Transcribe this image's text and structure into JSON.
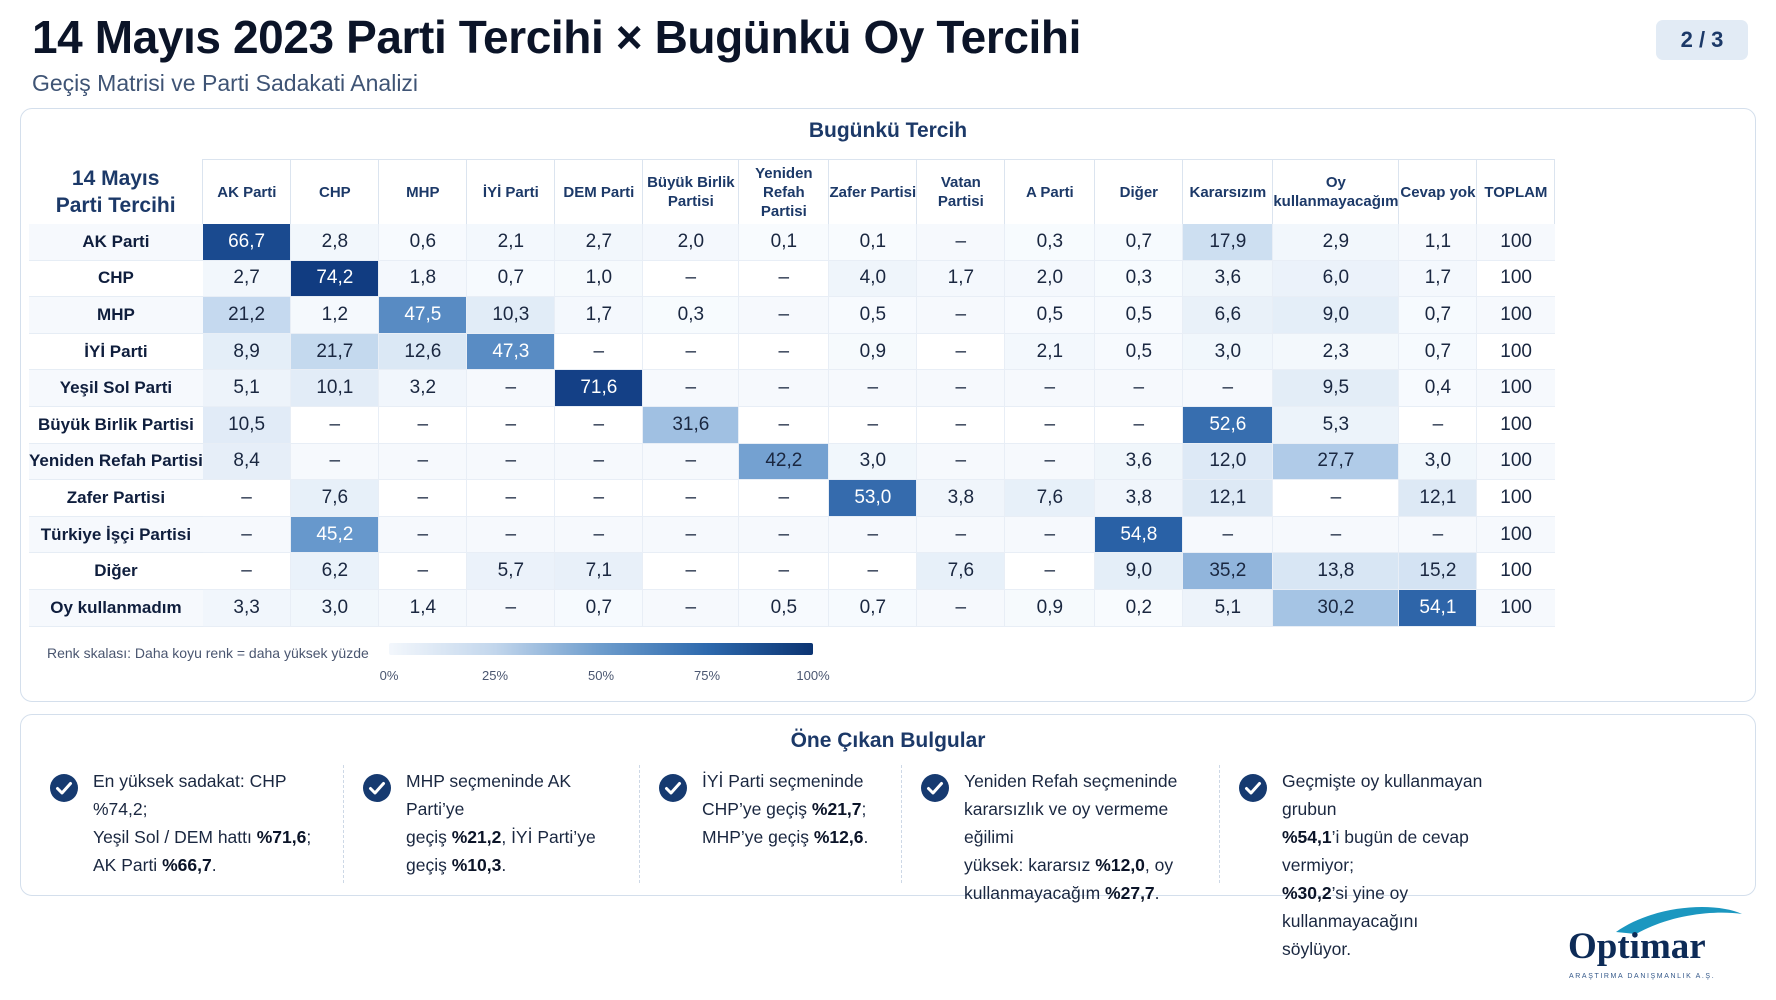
{
  "header": {
    "title": "14 Mayıs 2023 Parti Tercihi × Bugünkü Oy Tercihi",
    "subtitle": "Geçiş Matrisi ve Parti Sadakati Analizi",
    "page_indicator": "2 / 3"
  },
  "chart_data": {
    "type": "heatmap",
    "title": "Bugünkü Tercih",
    "row_axis_title": "14 Mayıs Parti Tercihi",
    "columns": [
      "AK Parti",
      "CHP",
      "MHP",
      "İYİ Parti",
      "DEM Parti",
      "Büyük Birlik Partisi",
      "Yeniden Refah Partisi",
      "Zafer Partisi",
      "Vatan Partisi",
      "A Parti",
      "Diğer",
      "Kararsızım",
      "Oy kullanmayacağım",
      "Cevap yok"
    ],
    "total_header": "TOPLAM",
    "rows": [
      {
        "label": "AK Parti",
        "values": [
          "66,7",
          "2,8",
          "0,6",
          "2,1",
          "2,7",
          "2,0",
          "0,1",
          "0,1",
          "–",
          "0,3",
          "0,7",
          "17,9",
          "2,9",
          "1,1"
        ],
        "total": "100"
      },
      {
        "label": "CHP",
        "values": [
          "2,7",
          "74,2",
          "1,8",
          "0,7",
          "1,0",
          "–",
          "–",
          "4,0",
          "1,7",
          "2,0",
          "0,3",
          "3,6",
          "6,0",
          "1,7"
        ],
        "total": "100"
      },
      {
        "label": "MHP",
        "values": [
          "21,2",
          "1,2",
          "47,5",
          "10,3",
          "1,7",
          "0,3",
          "–",
          "0,5",
          "–",
          "0,5",
          "0,5",
          "6,6",
          "9,0",
          "0,7"
        ],
        "total": "100"
      },
      {
        "label": "İYİ Parti",
        "values": [
          "8,9",
          "21,7",
          "12,6",
          "47,3",
          "–",
          "–",
          "–",
          "0,9",
          "–",
          "2,1",
          "0,5",
          "3,0",
          "2,3",
          "0,7"
        ],
        "total": "100"
      },
      {
        "label": "Yeşil Sol Parti",
        "values": [
          "5,1",
          "10,1",
          "3,2",
          "–",
          "71,6",
          "–",
          "–",
          "–",
          "–",
          "–",
          "–",
          "–",
          "9,5",
          "0,4"
        ],
        "total": "100"
      },
      {
        "label": "Büyük Birlik Partisi",
        "values": [
          "10,5",
          "–",
          "–",
          "–",
          "–",
          "31,6",
          "–",
          "–",
          "–",
          "–",
          "–",
          "52,6",
          "5,3",
          "–"
        ],
        "total": "100"
      },
      {
        "label": "Yeniden Refah Partisi",
        "values": [
          "8,4",
          "–",
          "–",
          "–",
          "–",
          "–",
          "42,2",
          "3,0",
          "–",
          "–",
          "3,6",
          "12,0",
          "27,7",
          "3,0"
        ],
        "total": "100"
      },
      {
        "label": "Zafer Partisi",
        "values": [
          "–",
          "7,6",
          "–",
          "–",
          "–",
          "–",
          "–",
          "53,0",
          "3,8",
          "7,6",
          "3,8",
          "12,1",
          "–",
          "12,1"
        ],
        "total": "100"
      },
      {
        "label": "Türkiye İşçi Partisi",
        "values": [
          "–",
          "45,2",
          "–",
          "–",
          "–",
          "–",
          "–",
          "–",
          "–",
          "–",
          "54,8",
          "–",
          "–",
          "–"
        ],
        "total": "100"
      },
      {
        "label": "Diğer",
        "values": [
          "–",
          "6,2",
          "–",
          "5,7",
          "7,1",
          "–",
          "–",
          "–",
          "7,6",
          "–",
          "9,0",
          "35,2",
          "13,8",
          "15,2"
        ],
        "total": "100"
      },
      {
        "label": "Oy kullanmadım",
        "values": [
          "3,3",
          "3,0",
          "1,4",
          "–",
          "0,7",
          "–",
          "0,5",
          "0,7",
          "–",
          "0,9",
          "0,2",
          "5,1",
          "30,2",
          "54,1"
        ],
        "total": "100"
      }
    ],
    "color_scale": {
      "label": "Renk skalası: Daha koyu renk = daha yüksek yüzde",
      "min": 0,
      "max": 100,
      "ticks": [
        "0%",
        "25%",
        "50%",
        "75%",
        "100%"
      ],
      "colors": [
        "#f3f7fc",
        "#0c3472"
      ]
    }
  },
  "findings": {
    "title": "Öne Çıkan Bulgular",
    "items": [
      {
        "segments": [
          {
            "t": "En yüksek sadakat: CHP %74,2;",
            "b": false
          },
          {
            "br": true
          },
          {
            "t": "Yeşil Sol / DEM hattı ",
            "b": false
          },
          {
            "t": "%71,6",
            "b": true
          },
          {
            "t": ";",
            "b": false
          },
          {
            "br": true
          },
          {
            "t": "AK Parti ",
            "b": false
          },
          {
            "t": "%66,7",
            "b": true
          },
          {
            "t": ".",
            "b": false
          }
        ]
      },
      {
        "segments": [
          {
            "t": "MHP seçmeninde AK Parti’ye",
            "b": false
          },
          {
            "br": true
          },
          {
            "t": "geçiş ",
            "b": false
          },
          {
            "t": "%21,2",
            "b": true
          },
          {
            "t": ", İYİ Parti’ye",
            "b": false
          },
          {
            "br": true
          },
          {
            "t": "geçiş ",
            "b": false
          },
          {
            "t": "%10,3",
            "b": true
          },
          {
            "t": ".",
            "b": false
          }
        ]
      },
      {
        "segments": [
          {
            "t": "İYİ Parti seçmeninde",
            "b": false
          },
          {
            "br": true
          },
          {
            "t": "CHP’ye geçiş ",
            "b": false
          },
          {
            "t": "%21,7",
            "b": true
          },
          {
            "t": ";",
            "b": false
          },
          {
            "br": true
          },
          {
            "t": "MHP’ye geçiş ",
            "b": false
          },
          {
            "t": "%12,6",
            "b": true
          },
          {
            "t": ".",
            "b": false
          }
        ]
      },
      {
        "segments": [
          {
            "t": "Yeniden Refah seçmeninde",
            "b": false
          },
          {
            "br": true
          },
          {
            "t": "kararsızlık ve oy vermeme eğilimi",
            "b": false
          },
          {
            "br": true
          },
          {
            "t": "yüksek: kararsız ",
            "b": false
          },
          {
            "t": "%12,0",
            "b": true
          },
          {
            "t": ", oy",
            "b": false
          },
          {
            "br": true
          },
          {
            "t": "kullanmayacağım ",
            "b": false
          },
          {
            "t": "%27,7",
            "b": true
          },
          {
            "t": ".",
            "b": false
          }
        ]
      },
      {
        "segments": [
          {
            "t": "Geçmişte oy kullanmayan grubun",
            "b": false
          },
          {
            "br": true
          },
          {
            "t": "%54,1",
            "b": true
          },
          {
            "t": "’i bugün de cevap vermiyor;",
            "b": false
          },
          {
            "br": true
          },
          {
            "t": "%30,2",
            "b": true
          },
          {
            "t": "’si yine oy kullanmayacağını",
            "b": false
          },
          {
            "br": true
          },
          {
            "t": "söylüyor.",
            "b": false
          }
        ]
      }
    ]
  },
  "logo": {
    "brand": "Optimar",
    "tagline": "ARAŞTIRMA DANIŞMANLIK A.Ş."
  },
  "colors": {
    "navy": "#0b1428",
    "accent": "#1c3968",
    "check": "#163a70"
  }
}
